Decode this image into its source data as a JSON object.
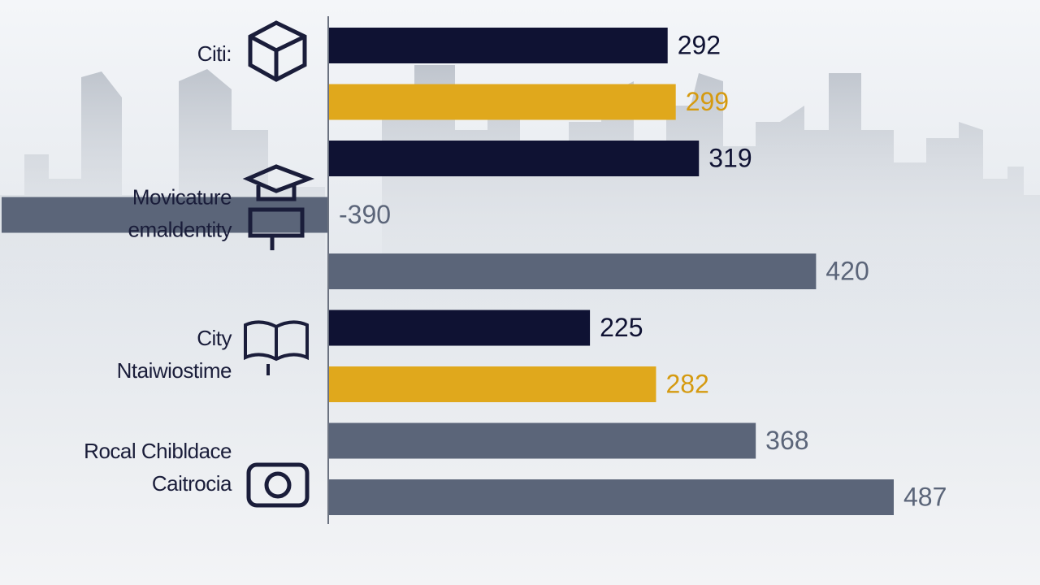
{
  "chart_data": {
    "type": "bar",
    "groups": [
      {
        "lines": [
          "Citi:"
        ],
        "values": [
          292,
          299
        ],
        "colors": [
          "#0f1233",
          "#e0a81c"
        ]
      },
      {
        "lines": [
          "Movicature",
          "emaldentity"
        ],
        "values": [
          319,
          -390,
          420
        ],
        "colors": [
          "#0f1233",
          "#5b6579",
          "#5b6579"
        ]
      },
      {
        "lines": [
          "City",
          "Ntaiwiostime"
        ],
        "values": [
          225,
          282
        ],
        "colors": [
          "#0f1233",
          "#e0a81c"
        ]
      },
      {
        "lines": [
          "Rocal Chibldace",
          "Caitrocia"
        ],
        "values": [
          368,
          487
        ],
        "colors": [
          "#5b6579",
          "#5b6579"
        ]
      }
    ]
  }
}
